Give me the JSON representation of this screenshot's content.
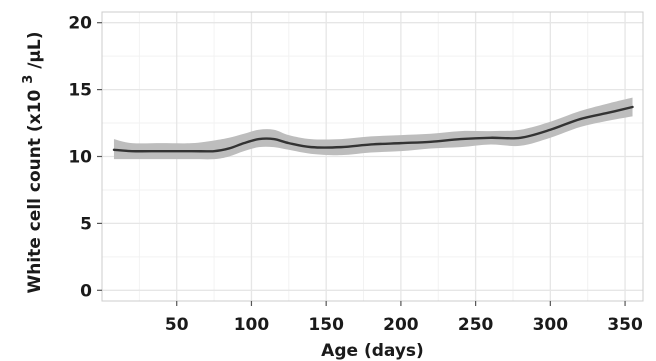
{
  "chart_data": {
    "type": "line",
    "title": "",
    "xlabel": "Age (days)",
    "ylabel_main": "White cell count (x10",
    "ylabel_exp": "3",
    "ylabel_tail": "/µL)",
    "xlim": [
      0,
      362
    ],
    "ylim": [
      -0.8,
      20.8
    ],
    "x_ticks": [
      50,
      100,
      150,
      200,
      250,
      300,
      350
    ],
    "y_ticks": [
      0,
      5,
      10,
      15,
      20
    ],
    "grid": true,
    "colors": {
      "panel": "#ffffff",
      "grid_major": "#e6e6e6",
      "grid_minor": "#f2f2f2",
      "border": "#cccccc",
      "band": "#bdbdbd",
      "line": "#333333"
    },
    "series": [
      {
        "x": [
          8,
          20,
          40,
          60,
          75,
          85,
          95,
          105,
          115,
          125,
          140,
          160,
          180,
          200,
          220,
          240,
          260,
          280,
          300,
          320,
          340,
          355
        ],
        "y": [
          10.5,
          10.4,
          10.4,
          10.4,
          10.4,
          10.6,
          11.0,
          11.3,
          11.3,
          11.0,
          10.7,
          10.7,
          10.9,
          11.0,
          11.1,
          11.3,
          11.4,
          11.4,
          12.0,
          12.8,
          13.3,
          13.7
        ],
        "lower": [
          9.8,
          9.8,
          9.8,
          9.8,
          9.8,
          10.0,
          10.4,
          10.7,
          10.7,
          10.5,
          10.2,
          10.1,
          10.3,
          10.4,
          10.6,
          10.7,
          10.9,
          10.8,
          11.4,
          12.2,
          12.7,
          13.0
        ],
        "upper": [
          11.3,
          11.0,
          11.0,
          11.0,
          11.2,
          11.4,
          11.7,
          12.0,
          12.0,
          11.6,
          11.3,
          11.3,
          11.5,
          11.6,
          11.7,
          11.9,
          11.9,
          12.0,
          12.6,
          13.4,
          14.0,
          14.4
        ]
      }
    ]
  }
}
